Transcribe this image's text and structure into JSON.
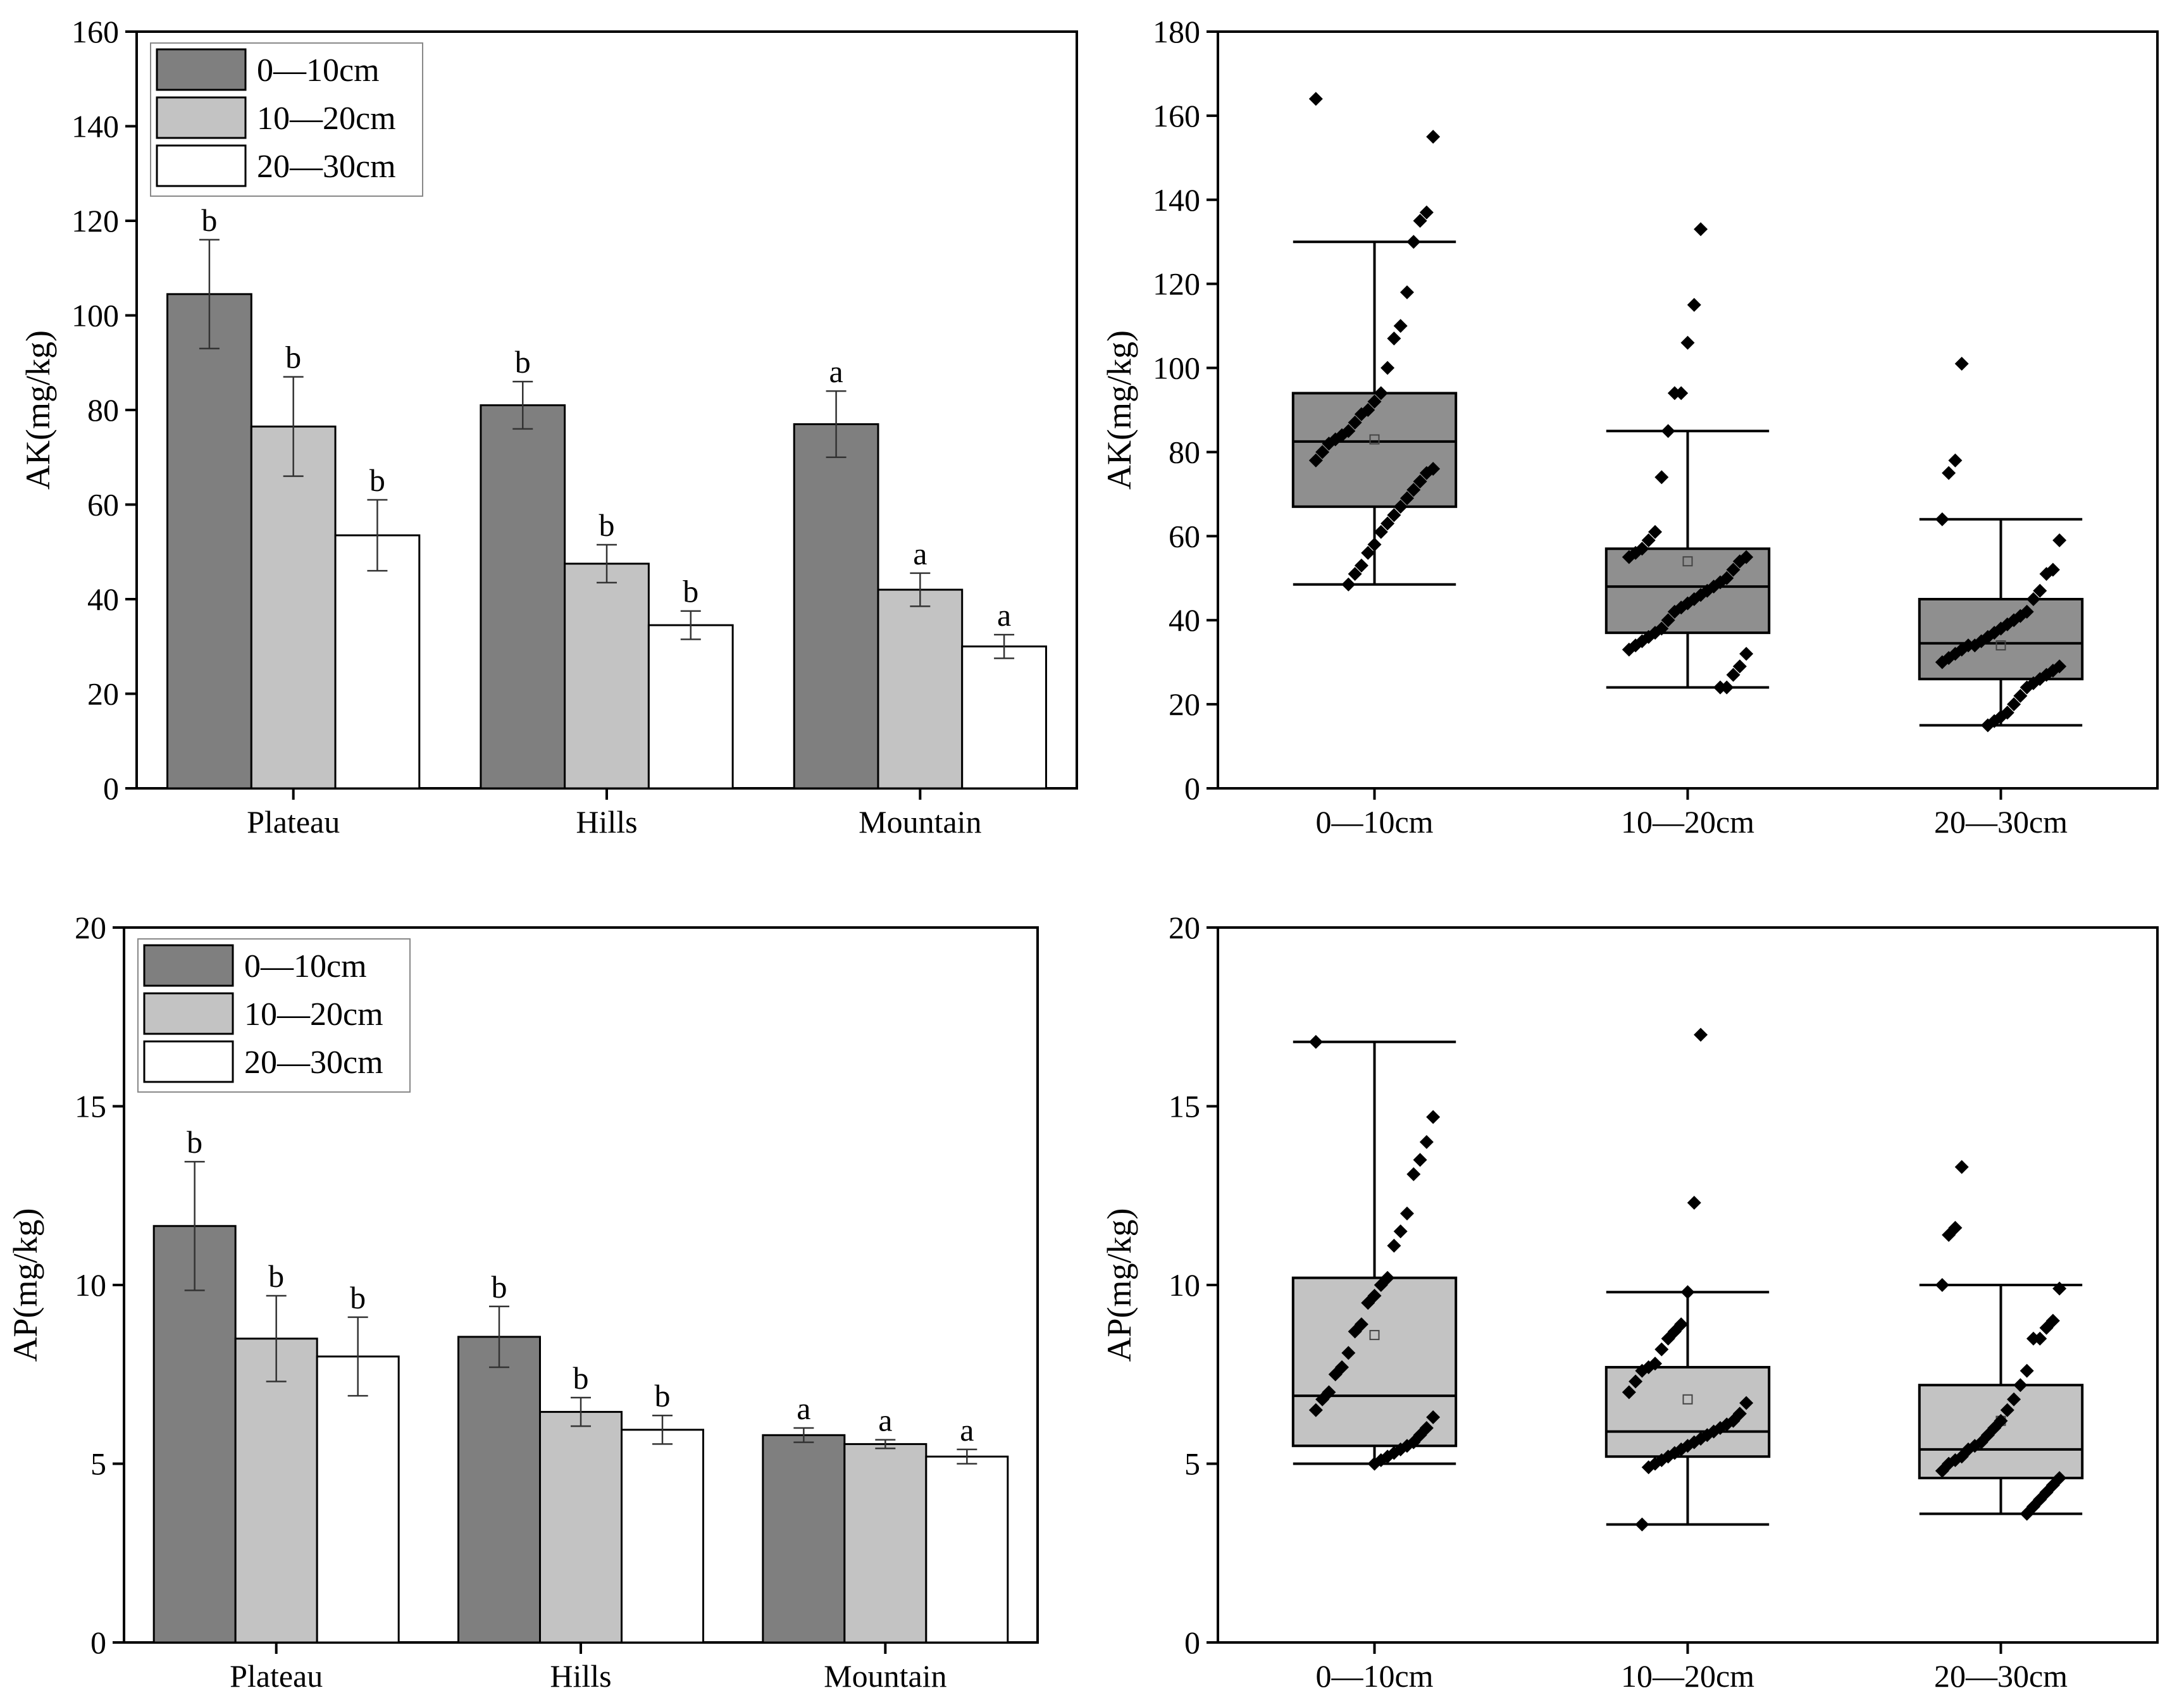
{
  "colors": {
    "depth_0_10": "#7f7f7f",
    "depth_10_20": "#c3c3c3",
    "depth_20_30": "#ffffff",
    "box_top": "#8f8f8f",
    "box_bottom": "#c3c3c3",
    "points": "#000000"
  },
  "chart_data": [
    {
      "type": "bar",
      "panel": "top-left",
      "ylabel": "AK(mg/kg)",
      "ylim": [
        0,
        160
      ],
      "yticks": [
        0,
        20,
        40,
        60,
        80,
        100,
        120,
        140,
        160
      ],
      "categories": [
        "Plateau",
        "Hills",
        "Mountain"
      ],
      "legend_position": "top-left",
      "series": [
        {
          "name": "0—10cm",
          "values": [
            104.5,
            81,
            77
          ],
          "errors": [
            11.5,
            5,
            7
          ],
          "letters": [
            "b",
            "b",
            "a"
          ]
        },
        {
          "name": "10—20cm",
          "values": [
            76.5,
            47.5,
            42
          ],
          "errors": [
            10.5,
            4,
            3.5
          ],
          "letters": [
            "b",
            "b",
            "a"
          ]
        },
        {
          "name": "20—30cm",
          "values": [
            53.5,
            34.5,
            30
          ],
          "errors": [
            7.5,
            3,
            2.5
          ],
          "letters": [
            "b",
            "b",
            "a"
          ]
        }
      ]
    },
    {
      "type": "box",
      "panel": "top-right",
      "ylabel": "AK(mg/kg)",
      "ylim": [
        0,
        180
      ],
      "yticks": [
        0,
        20,
        40,
        60,
        80,
        100,
        120,
        140,
        160,
        180
      ],
      "categories": [
        "0—10cm",
        "10—20cm",
        "20—30cm"
      ],
      "boxes": [
        {
          "whisker_low": 48.5,
          "q1": 67,
          "median": 82.5,
          "q3": 94,
          "whisker_high": 130,
          "mean": 83,
          "points": [
            164,
            155,
            137,
            135,
            130,
            118,
            110,
            107,
            100,
            94,
            92,
            90,
            89,
            87,
            85,
            84,
            83,
            82,
            80,
            78,
            76,
            75,
            73,
            71,
            69,
            67,
            65,
            63,
            61,
            58,
            56,
            53,
            51,
            48.5
          ]
        },
        {
          "whisker_low": 24,
          "q1": 37,
          "median": 48,
          "q3": 57,
          "whisker_high": 85,
          "mean": 54,
          "points": [
            133,
            115,
            106,
            94,
            94,
            85,
            74,
            61,
            59,
            57,
            56,
            55,
            55,
            54,
            52,
            50,
            49,
            48,
            47,
            46,
            45,
            44,
            43,
            42,
            40,
            38,
            37,
            36,
            35,
            34,
            33,
            32,
            29,
            27,
            24,
            24
          ]
        },
        {
          "whisker_low": 15,
          "q1": 26,
          "median": 34.5,
          "q3": 45,
          "whisker_high": 64,
          "mean": 34,
          "points": [
            101,
            78,
            75,
            64,
            59,
            52,
            51,
            47,
            45,
            42,
            41,
            40,
            39,
            38,
            37,
            36,
            35,
            34,
            34,
            33,
            32,
            31,
            30,
            29,
            28,
            27,
            26,
            25,
            24,
            22,
            20,
            18,
            17,
            16,
            15
          ]
        }
      ]
    },
    {
      "type": "bar",
      "panel": "bottom-left",
      "ylabel": "AP(mg/kg)",
      "ylim": [
        0,
        20
      ],
      "yticks": [
        0,
        5,
        10,
        15,
        20
      ],
      "categories": [
        "Plateau",
        "Hills",
        "Mountain"
      ],
      "legend_position": "top-left",
      "series": [
        {
          "name": "0—10cm",
          "values": [
            11.65,
            8.55,
            5.8
          ],
          "errors": [
            1.8,
            0.85,
            0.2
          ],
          "letters": [
            "b",
            "b",
            "a"
          ]
        },
        {
          "name": "10—20cm",
          "values": [
            8.5,
            6.45,
            5.55
          ],
          "errors": [
            1.2,
            0.4,
            0.12
          ],
          "letters": [
            "b",
            "b",
            "a"
          ]
        },
        {
          "name": "20—30cm",
          "values": [
            8.0,
            5.95,
            5.2
          ],
          "errors": [
            1.1,
            0.4,
            0.2
          ],
          "letters": [
            "b",
            "b",
            "a"
          ]
        }
      ]
    },
    {
      "type": "box",
      "panel": "bottom-right",
      "ylabel": "AP(mg/kg)",
      "ylim": [
        0,
        20
      ],
      "yticks": [
        0,
        5,
        10,
        15,
        20
      ],
      "categories": [
        "0—10cm",
        "10—20cm",
        "20—30cm"
      ],
      "boxes": [
        {
          "whisker_low": 5.0,
          "q1": 5.5,
          "median": 6.9,
          "q3": 10.2,
          "whisker_high": 16.8,
          "mean": 8.6,
          "points": [
            16.8,
            14.7,
            14.0,
            13.5,
            13.1,
            12.0,
            11.5,
            11.1,
            10.2,
            10.0,
            9.7,
            9.5,
            8.9,
            8.7,
            8.1,
            7.7,
            7.5,
            7.0,
            6.8,
            6.5,
            6.3,
            6.0,
            5.8,
            5.6,
            5.5,
            5.4,
            5.3,
            5.2,
            5.1,
            5.0
          ]
        },
        {
          "whisker_low": 3.3,
          "q1": 5.2,
          "median": 5.9,
          "q3": 7.7,
          "whisker_high": 9.8,
          "mean": 6.8,
          "points": [
            17.0,
            12.3,
            9.8,
            8.9,
            8.7,
            8.5,
            8.2,
            7.8,
            7.7,
            7.6,
            7.3,
            7.0,
            6.7,
            6.4,
            6.2,
            6.1,
            6.0,
            5.9,
            5.8,
            5.7,
            5.6,
            5.5,
            5.4,
            5.3,
            5.2,
            5.1,
            5.0,
            4.9,
            3.3
          ]
        },
        {
          "whisker_low": 3.6,
          "q1": 4.6,
          "median": 5.4,
          "q3": 7.2,
          "whisker_high": 10.0,
          "mean": 6.2,
          "points": [
            13.3,
            11.6,
            11.4,
            10.0,
            9.9,
            9.0,
            8.8,
            8.5,
            8.5,
            7.6,
            7.2,
            6.8,
            6.5,
            6.2,
            6.0,
            5.8,
            5.6,
            5.5,
            5.4,
            5.2,
            5.1,
            5.0,
            4.8,
            4.6,
            4.4,
            4.2,
            4.0,
            3.8,
            3.6
          ]
        }
      ]
    }
  ]
}
